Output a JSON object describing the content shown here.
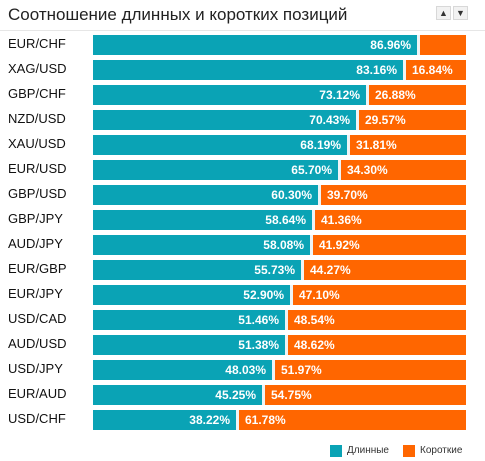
{
  "header": {
    "title": "Соотношение длинных и коротких позиций",
    "sort_up_icon": "▲",
    "sort_down_icon": "▼"
  },
  "colors": {
    "long": "#0aa3b5",
    "short": "#ff6600"
  },
  "legend": {
    "long_label": "Длинные",
    "short_label": "Короткие"
  },
  "chart_data": {
    "type": "bar",
    "stacked": true,
    "orientation": "horizontal",
    "categories": [
      "EUR/CHF",
      "XAG/USD",
      "GBP/CHF",
      "NZD/USD",
      "XAU/USD",
      "EUR/USD",
      "GBP/USD",
      "GBP/JPY",
      "AUD/JPY",
      "EUR/GBP",
      "EUR/JPY",
      "USD/CAD",
      "AUD/USD",
      "USD/JPY",
      "EUR/AUD",
      "USD/CHF"
    ],
    "series": [
      {
        "name": "Длинные",
        "values": [
          86.96,
          83.16,
          73.12,
          70.43,
          68.19,
          65.7,
          60.3,
          58.64,
          58.08,
          55.73,
          52.9,
          51.46,
          51.38,
          48.03,
          45.25,
          38.22
        ]
      },
      {
        "name": "Короткие",
        "values": [
          13.04,
          16.84,
          26.88,
          29.57,
          31.81,
          34.3,
          39.7,
          41.36,
          41.92,
          44.27,
          47.1,
          48.54,
          48.62,
          51.97,
          54.75,
          61.78
        ]
      }
    ],
    "labels_long": [
      "86.96%",
      "83.16%",
      "73.12%",
      "70.43%",
      "68.19%",
      "65.70%",
      "60.30%",
      "58.64%",
      "58.08%",
      "55.73%",
      "52.90%",
      "51.46%",
      "51.38%",
      "48.03%",
      "45.25%",
      "38.22%"
    ],
    "labels_short": [
      "",
      "16.84%",
      "26.88%",
      "29.57%",
      "31.81%",
      "34.30%",
      "39.70%",
      "41.36%",
      "41.92%",
      "44.27%",
      "47.10%",
      "48.54%",
      "48.62%",
      "51.97%",
      "54.75%",
      "61.78%"
    ],
    "xlim": [
      0,
      100
    ],
    "legend_position": "bottom-right"
  }
}
